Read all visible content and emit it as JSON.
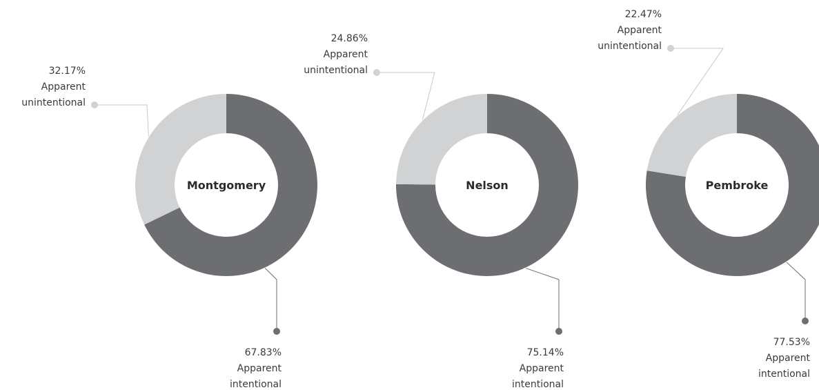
{
  "chart_data": [
    {
      "type": "pie",
      "donut": true,
      "title": "Montgomery",
      "categories": [
        "Apparent intentional",
        "Apparent unintentional"
      ],
      "values": [
        67.83,
        32.17
      ],
      "value_labels": [
        "67.83%",
        "32.17%"
      ],
      "colors": [
        "#6d6e71",
        "#d1d2d4"
      ]
    },
    {
      "type": "pie",
      "donut": true,
      "title": "Nelson",
      "categories": [
        "Apparent intentional",
        "Apparent unintentional"
      ],
      "values": [
        75.14,
        24.86
      ],
      "value_labels": [
        "75.14%",
        "24.86%"
      ],
      "colors": [
        "#6d6e71",
        "#d1d2d4"
      ]
    },
    {
      "type": "pie",
      "donut": true,
      "title": "Pembroke",
      "categories": [
        "Apparent intentional",
        "Apparent unintentional"
      ],
      "values": [
        77.53,
        22.47
      ],
      "value_labels": [
        "77.53%",
        "22.47%"
      ],
      "colors": [
        "#6d6e71",
        "#d1d2d4"
      ]
    }
  ]
}
